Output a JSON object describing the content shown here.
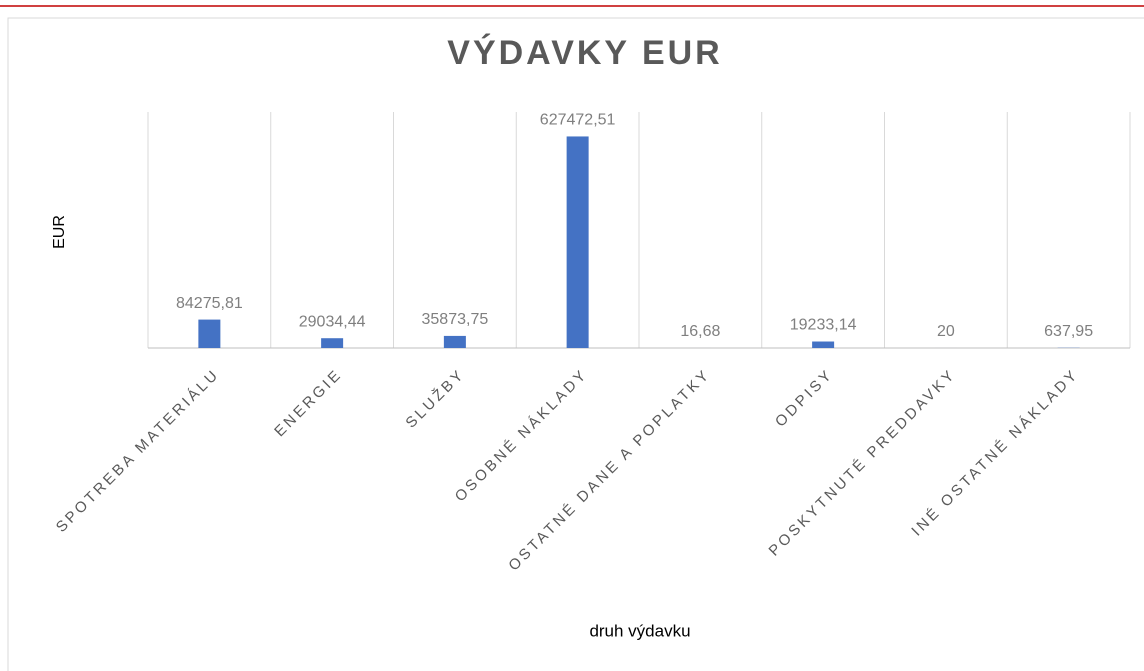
{
  "chart_data": {
    "type": "bar",
    "title": "VÝDAVKY  EUR",
    "x_label": "druh výdavku",
    "y_label": "EUR",
    "categories": [
      "SPOTREBA MATERIÁLU",
      "ENERGIE",
      "SLUŽBY",
      "OSOBNÉ NÁKLADY",
      "OSTATNÉ DANE A POPLATKY",
      "ODPISY",
      "POSKYTNUTÉ PREDDAVKY",
      "INÉ OSTATNÉ NÁKLADY"
    ],
    "values": [
      84275.81,
      29034.44,
      35873.75,
      627472.51,
      16.68,
      19233.14,
      20,
      637.95
    ],
    "value_labels": [
      "84275,81",
      "29034,44",
      "35873,75",
      "627472,51",
      "16,68",
      "19233,14",
      "20",
      "637,95"
    ],
    "color": "#4472c4",
    "ylim": [
      0,
      700000
    ]
  }
}
